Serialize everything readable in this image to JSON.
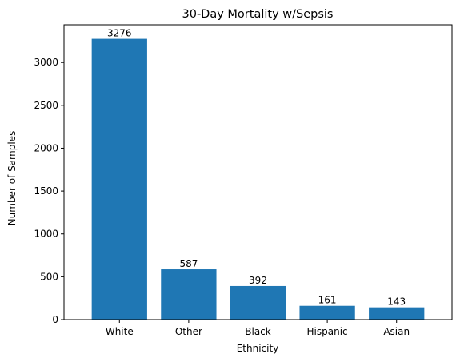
{
  "chart_data": {
    "type": "bar",
    "title": "30-Day Mortality w/Sepsis",
    "xlabel": "Ethnicity",
    "ylabel": "Number of Samples",
    "categories": [
      "White",
      "Other",
      "Black",
      "Hispanic",
      "Asian"
    ],
    "values": [
      3276,
      587,
      392,
      161,
      143
    ],
    "data_labels": [
      "3276",
      "587",
      "392",
      "161",
      "143"
    ],
    "ylim": [
      0,
      3440
    ],
    "yticks": [
      0,
      500,
      1000,
      1500,
      2000,
      2500,
      3000
    ],
    "ytick_labels": [
      "0",
      "500",
      "1000",
      "1500",
      "2000",
      "2500",
      "3000"
    ],
    "grid": false,
    "bar_color": "#1f77b4"
  }
}
